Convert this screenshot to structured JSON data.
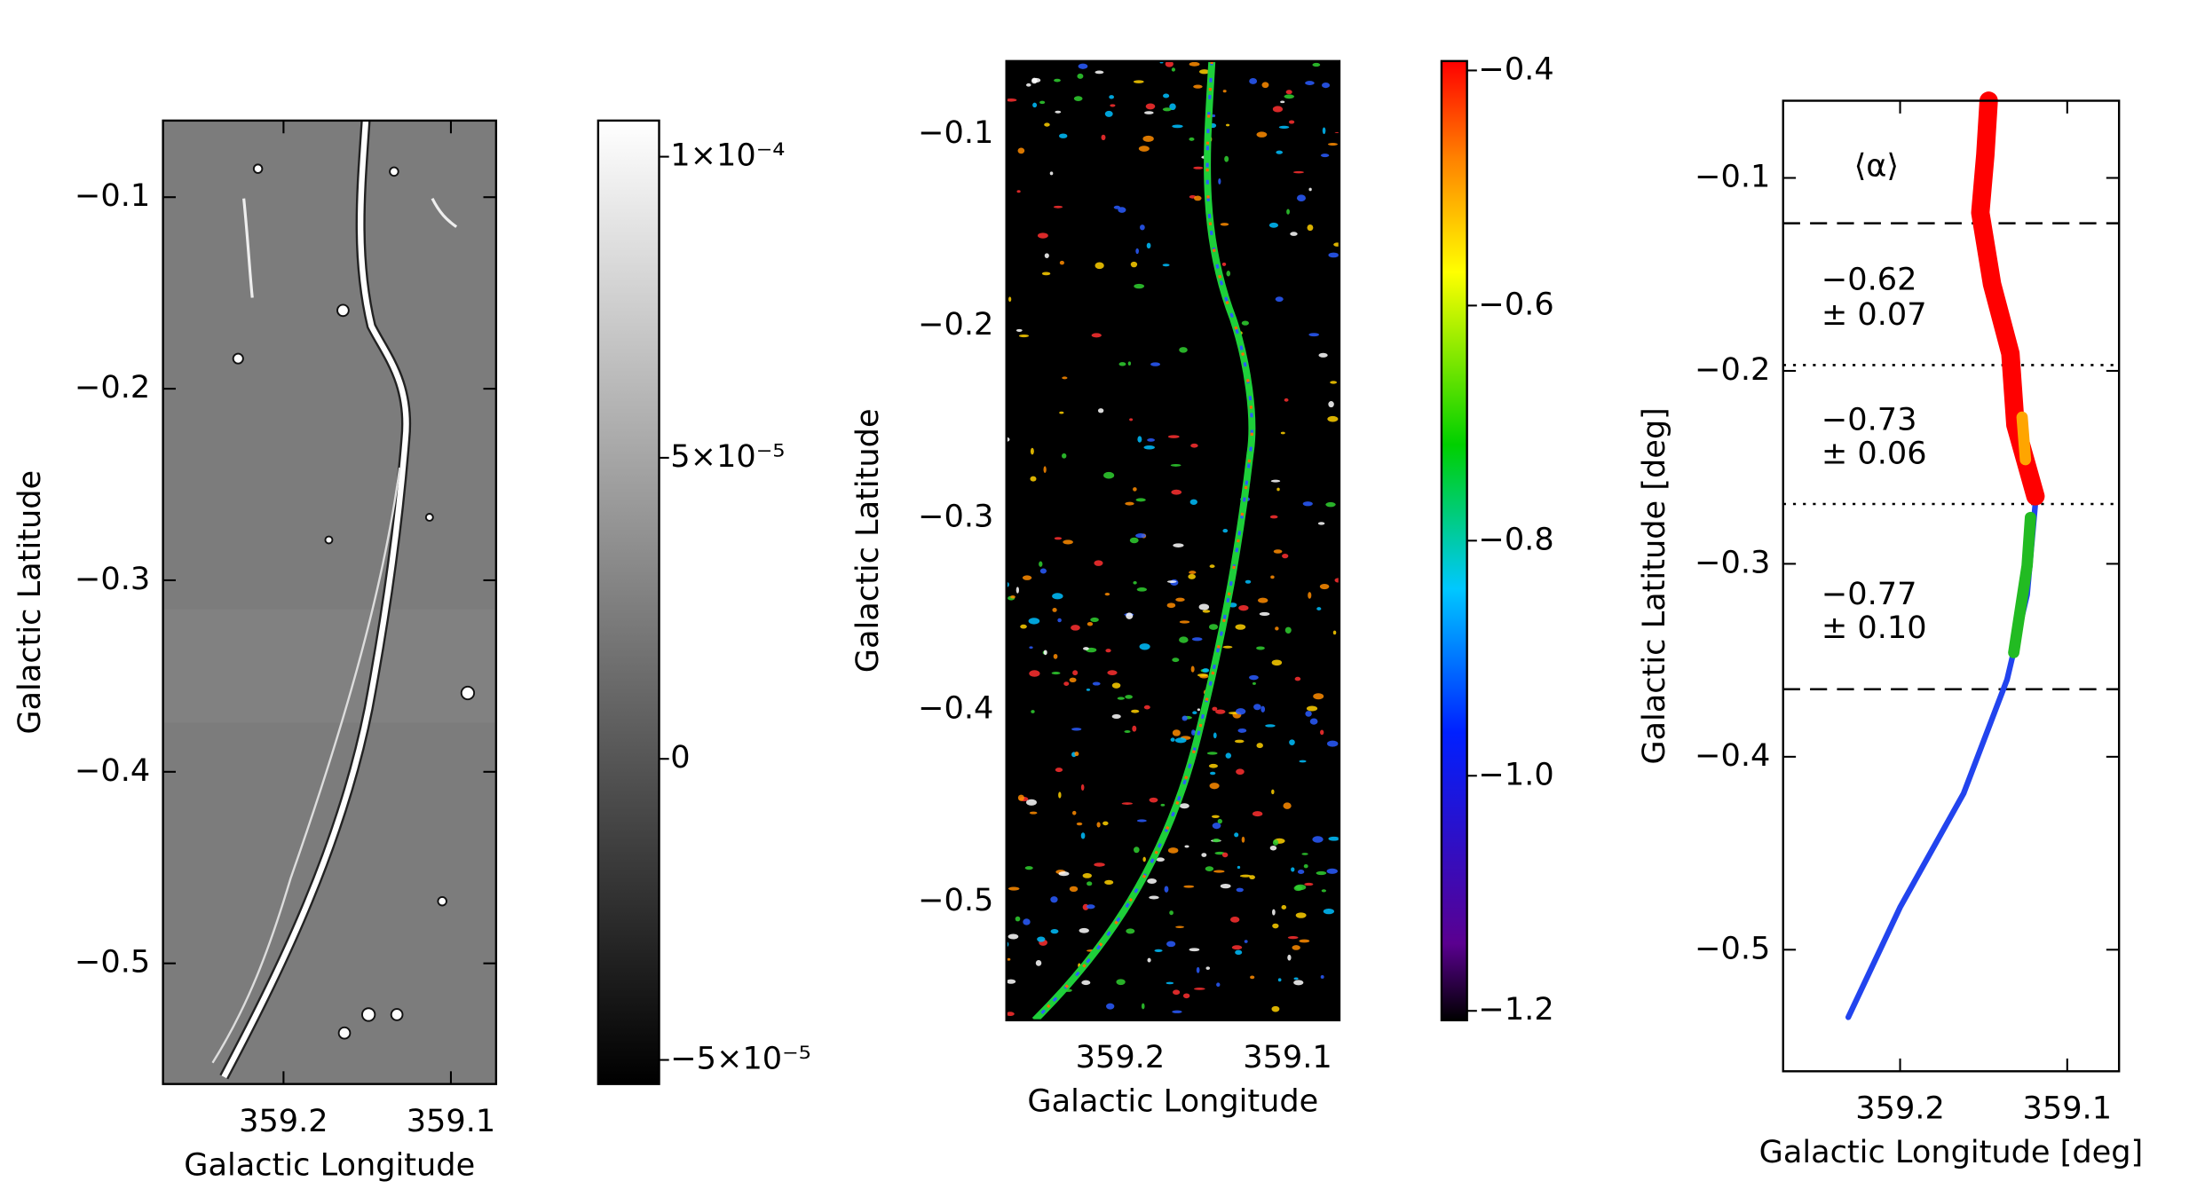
{
  "chart_data": [
    {
      "type": "image",
      "colormap": "gray",
      "xlabel": "Galactic Longitude",
      "ylabel": "Galactic Latitude",
      "xlim": [
        359.272,
        359.073
      ],
      "ylim": [
        -0.563,
        -0.06
      ],
      "xticks": [
        359.2,
        359.1
      ],
      "yticks": [
        {
          "value": -0.1,
          "label": "−0.1"
        },
        {
          "value": -0.2,
          "label": "−0.2"
        },
        {
          "value": -0.3,
          "label": "−0.3"
        },
        {
          "value": -0.4,
          "label": "−0.4"
        },
        {
          "value": -0.5,
          "label": "−0.5"
        }
      ],
      "colorbar": {
        "lim": [
          -5.4e-05,
          0.000106
        ],
        "ticks": [
          {
            "value": 0.0001,
            "label": "1×10⁻⁴"
          },
          {
            "value": 5e-05,
            "label": "5×10⁻⁵"
          },
          0,
          {
            "value": -5e-05,
            "label": "−5×10⁻⁵"
          }
        ]
      }
    },
    {
      "type": "image",
      "colormap": "rainbow",
      "xlabel": "Galactic Longitude",
      "ylabel": "Galactic Latitude",
      "xlim": [
        359.268,
        359.069
      ],
      "ylim": [
        -0.562,
        -0.062
      ],
      "xticks": [
        359.2,
        359.1
      ],
      "yticks": [
        {
          "value": -0.1,
          "label": "−0.1"
        },
        {
          "value": -0.2,
          "label": "−0.2"
        },
        {
          "value": -0.3,
          "label": "−0.3"
        },
        {
          "value": -0.4,
          "label": "−0.4"
        },
        {
          "value": -0.5,
          "label": "−0.5"
        }
      ],
      "colorbar": {
        "lim": [
          -1.208,
          -0.392
        ],
        "ticks": [
          {
            "value": -0.4,
            "label": "−0.4"
          },
          {
            "value": -0.6,
            "label": "−0.6"
          },
          {
            "value": -0.8,
            "label": "−0.8"
          },
          {
            "value": -1.0,
            "label": "−1.0"
          },
          {
            "value": -1.2,
            "label": "−1.2"
          }
        ]
      }
    },
    {
      "type": "line",
      "xlabel": "Galactic Longitude [deg]",
      "ylabel": "Galactic Latitude [deg]",
      "xlim": [
        359.27,
        359.069
      ],
      "ylim": [
        -0.563,
        -0.06
      ],
      "xticks": [
        359.2,
        359.1
      ],
      "yticks": [
        {
          "value": -0.1,
          "label": "−0.1"
        },
        {
          "value": -0.2,
          "label": "−0.2"
        },
        {
          "value": -0.3,
          "label": "−0.3"
        },
        {
          "value": -0.4,
          "label": "−0.4"
        },
        {
          "value": -0.5,
          "label": "−0.5"
        }
      ],
      "series": [
        {
          "color": "#2244ee",
          "x": [
            359.119,
            359.124,
            359.136,
            359.162,
            359.2,
            359.231
          ],
          "values": [
            -0.268,
            -0.316,
            -0.36,
            -0.419,
            -0.478,
            -0.535
          ]
        },
        {
          "color": "#22bb22",
          "x": [
            359.122,
            359.124,
            359.132
          ],
          "values": [
            -0.276,
            -0.301,
            -0.346
          ]
        },
        {
          "color": "#ff0000",
          "x": [
            359.147,
            359.149,
            359.152,
            359.145,
            359.134,
            359.131,
            359.119
          ],
          "values": [
            -0.06,
            -0.088,
            -0.118,
            -0.155,
            -0.191,
            -0.228,
            -0.265
          ]
        },
        {
          "color": "#ffa500",
          "x": [
            359.127,
            359.125
          ],
          "values": [
            -0.224,
            -0.246
          ]
        }
      ],
      "hlines": [
        {
          "value": -0.1235,
          "style": "dashed"
        },
        {
          "value": -0.197,
          "style": "dotted"
        },
        {
          "value": -0.269,
          "style": "dotted"
        },
        {
          "value": -0.365,
          "style": "dashed"
        }
      ],
      "annotations": [
        "⟨α⟩",
        "−0.62",
        "± 0.07",
        "−0.73",
        "± 0.06",
        "−0.77",
        "± 0.10"
      ]
    }
  ]
}
